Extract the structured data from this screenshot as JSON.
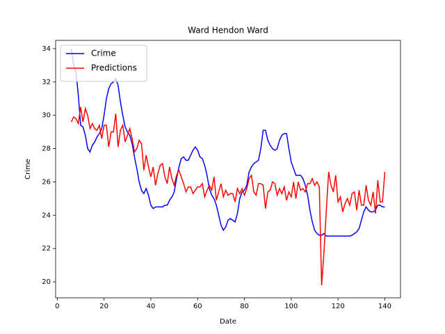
{
  "chart_data": {
    "type": "line",
    "title": "Ward Hendon Ward",
    "x_label": "Date",
    "y_label": "Crime",
    "xlim": [
      -0.7,
      146.7
    ],
    "ylim": [
      19.04,
      34.5
    ],
    "xticks": [
      0,
      20,
      40,
      60,
      80,
      100,
      120,
      140
    ],
    "yticks": [
      20,
      22,
      24,
      26,
      28,
      30,
      32,
      34
    ],
    "legend": "upper left",
    "grid": false,
    "x": [
      6,
      7,
      8,
      9,
      10,
      11,
      12,
      13,
      14,
      15,
      16,
      17,
      18,
      19,
      20,
      21,
      22,
      23,
      24,
      25,
      26,
      27,
      28,
      29,
      30,
      31,
      32,
      33,
      34,
      35,
      36,
      37,
      38,
      39,
      40,
      41,
      42,
      43,
      44,
      45,
      46,
      47,
      48,
      49,
      50,
      51,
      52,
      53,
      54,
      55,
      56,
      57,
      58,
      59,
      60,
      61,
      62,
      63,
      64,
      65,
      66,
      67,
      68,
      69,
      70,
      71,
      72,
      73,
      74,
      75,
      76,
      77,
      78,
      79,
      80,
      81,
      82,
      83,
      84,
      85,
      86,
      87,
      88,
      89,
      90,
      91,
      92,
      93,
      94,
      95,
      96,
      97,
      98,
      99,
      100,
      101,
      102,
      103,
      104,
      105,
      106,
      107,
      108,
      109,
      110,
      111,
      112,
      113,
      114,
      115,
      116,
      117,
      118,
      119,
      120,
      121,
      122,
      123,
      124,
      125,
      126,
      127,
      128,
      129,
      130,
      131,
      132,
      133,
      134,
      135,
      136,
      137,
      138,
      139,
      140
    ],
    "series": [
      {
        "name": "Crime",
        "color": "#0000ff",
        "values": [
          34.0,
          33.0,
          32.6,
          31.2,
          29.4,
          29.3,
          28.8,
          28.0,
          27.8,
          28.2,
          28.4,
          28.7,
          28.9,
          29.2,
          30.0,
          31.0,
          31.6,
          31.9,
          32.0,
          32.2,
          31.8,
          30.8,
          30.0,
          29.3,
          29.0,
          28.8,
          28.3,
          27.5,
          26.8,
          26.0,
          25.5,
          25.3,
          25.6,
          25.2,
          24.6,
          24.4,
          24.5,
          24.5,
          24.5,
          24.5,
          24.6,
          24.6,
          24.9,
          25.1,
          25.4,
          26.2,
          26.9,
          27.4,
          27.5,
          27.3,
          27.3,
          27.6,
          27.9,
          28.1,
          27.9,
          27.5,
          27.4,
          27.0,
          26.4,
          25.6,
          25.2,
          25.0,
          24.6,
          24.0,
          23.4,
          23.1,
          23.3,
          23.7,
          23.8,
          23.7,
          23.6,
          24.1,
          25.0,
          25.4,
          25.5,
          25.8,
          26.6,
          26.9,
          27.1,
          27.2,
          27.3,
          28.0,
          29.1,
          29.1,
          28.5,
          28.2,
          28.0,
          27.9,
          28.0,
          28.5,
          28.8,
          28.9,
          28.9,
          28.0,
          27.2,
          26.8,
          26.4,
          26.4,
          26.4,
          26.2,
          25.8,
          25.2,
          24.3,
          23.6,
          23.1,
          22.9,
          22.8,
          22.8,
          22.9,
          22.75,
          22.75,
          22.75,
          22.75,
          22.75,
          22.75,
          22.75,
          22.75,
          22.75,
          22.75,
          22.75,
          22.8,
          22.9,
          23.0,
          23.2,
          23.7,
          24.2,
          24.5,
          24.3,
          24.2,
          24.2,
          24.3,
          24.6,
          24.6,
          24.5,
          24.5
        ]
      },
      {
        "name": "Predictions",
        "color": "#ff0000",
        "values": [
          29.6,
          29.9,
          29.8,
          29.5,
          30.5,
          29.6,
          30.4,
          30.0,
          29.2,
          29.5,
          29.2,
          29.1,
          29.4,
          28.6,
          29.4,
          29.4,
          28.1,
          29.0,
          29.0,
          30.1,
          28.1,
          29.1,
          29.4,
          28.4,
          28.8,
          29.2,
          28.6,
          27.8,
          28.0,
          28.5,
          28.3,
          26.7,
          27.6,
          26.9,
          26.3,
          26.9,
          25.8,
          26.5,
          27.0,
          27.1,
          26.3,
          25.9,
          26.9,
          26.2,
          25.8,
          26.4,
          26.7,
          26.3,
          25.9,
          25.4,
          25.7,
          25.7,
          25.3,
          25.5,
          25.7,
          25.7,
          25.9,
          25.1,
          25.5,
          25.8,
          25.5,
          26.3,
          24.9,
          25.4,
          25.9,
          25.1,
          25.5,
          25.2,
          25.3,
          25.3,
          24.8,
          25.6,
          25.3,
          25.6,
          25.2,
          25.6,
          26.2,
          26.4,
          25.4,
          25.2,
          25.9,
          25.9,
          25.8,
          24.4,
          25.4,
          25.5,
          26.0,
          25.9,
          25.2,
          25.6,
          25.3,
          25.7,
          24.9,
          25.4,
          25.1,
          26.0,
          25.0,
          26.0,
          25.5,
          25.6,
          25.4,
          25.9,
          25.9,
          26.2,
          25.8,
          26.0,
          25.7,
          19.8,
          21.8,
          24.3,
          26.6,
          25.8,
          25.4,
          26.4,
          24.8,
          25.1,
          24.2,
          24.7,
          25.0,
          24.6,
          25.3,
          25.4,
          24.3,
          25.5,
          24.6,
          24.6,
          25.8,
          24.9,
          24.6,
          25.4,
          24.1,
          26.1,
          24.8,
          24.8,
          26.6
        ]
      }
    ]
  }
}
